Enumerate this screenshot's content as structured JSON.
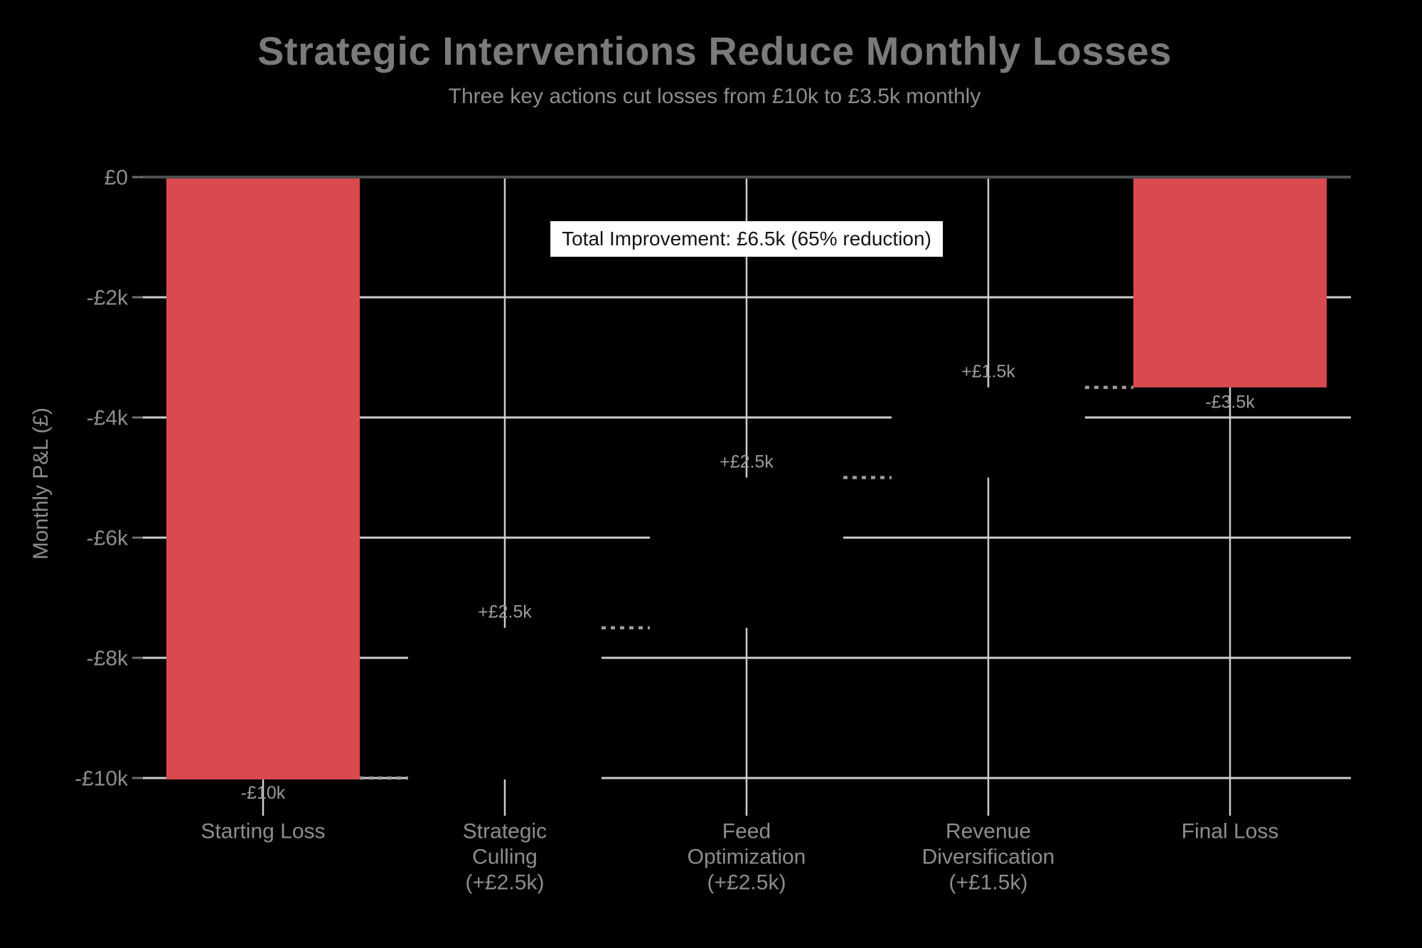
{
  "chart_data": {
    "type": "bar",
    "subtype": "waterfall",
    "title": "Strategic Interventions Reduce Monthly Losses",
    "subtitle": "Three key actions cut losses from £10k to £3.5k monthly",
    "ylabel": "Monthly P&L (£)",
    "ylim": [
      -10000,
      0
    ],
    "grid": true,
    "legend": "none",
    "yticks": [
      {
        "value": 0,
        "label": "£0"
      },
      {
        "value": -2000,
        "label": "-£2k"
      },
      {
        "value": -4000,
        "label": "-£4k"
      },
      {
        "value": -6000,
        "label": "-£6k"
      },
      {
        "value": -8000,
        "label": "-£8k"
      },
      {
        "value": -10000,
        "label": "-£10k"
      }
    ],
    "categories": [
      {
        "axis_label_lines": [
          "Starting Loss"
        ]
      },
      {
        "axis_label_lines": [
          "Strategic",
          "Culling",
          "(+£2.5k)"
        ]
      },
      {
        "axis_label_lines": [
          "Feed",
          "Optimization",
          "(+£2.5k)"
        ]
      },
      {
        "axis_label_lines": [
          "Revenue",
          "Diversification",
          "(+£1.5k)"
        ]
      },
      {
        "axis_label_lines": [
          "Final Loss"
        ]
      }
    ],
    "steps": [
      {
        "name": "Starting Loss",
        "kind": "total",
        "start": 0,
        "end": -10000,
        "delta": -10000,
        "value_label": "-£10k",
        "label_side": "below",
        "bar_color": "#d9494e"
      },
      {
        "name": "Strategic Culling",
        "kind": "increase",
        "start": -10000,
        "end": -7500,
        "delta": 2500,
        "value_label": "+£2.5k",
        "label_side": "above",
        "bar_color": "#000000"
      },
      {
        "name": "Feed Optimization",
        "kind": "increase",
        "start": -7500,
        "end": -5000,
        "delta": 2500,
        "value_label": "+£2.5k",
        "label_side": "above",
        "bar_color": "#000000"
      },
      {
        "name": "Revenue Diversification",
        "kind": "increase",
        "start": -5000,
        "end": -3500,
        "delta": 1500,
        "value_label": "+£1.5k",
        "label_side": "above",
        "bar_color": "#000000"
      },
      {
        "name": "Final Loss",
        "kind": "total",
        "start": 0,
        "end": -3500,
        "delta": -3500,
        "value_label": "-£3.5k",
        "label_side": "below",
        "bar_color": "#d9494e"
      }
    ],
    "connector_style": "dotted",
    "annotation_box": {
      "text": "Total Improvement: £6.5k (65% reduction)"
    }
  },
  "colors": {
    "background": "#000000",
    "bar_negative": "#d9494e",
    "bar_invisible": "#000000",
    "grid": "#cdcdcd",
    "zero_axis": "#4a4e4e",
    "tick": "#6e6e6e",
    "tick_label": "#8d8d8d",
    "title": "#7a7a7a",
    "subtitle": "#8d8d8d",
    "category_label": "#8d8d8d",
    "value_label": "#9b9b9b",
    "connector": "#9b9b9b",
    "annotation_box_bg": "#ffffff",
    "annotation_box_text": "#141414"
  }
}
